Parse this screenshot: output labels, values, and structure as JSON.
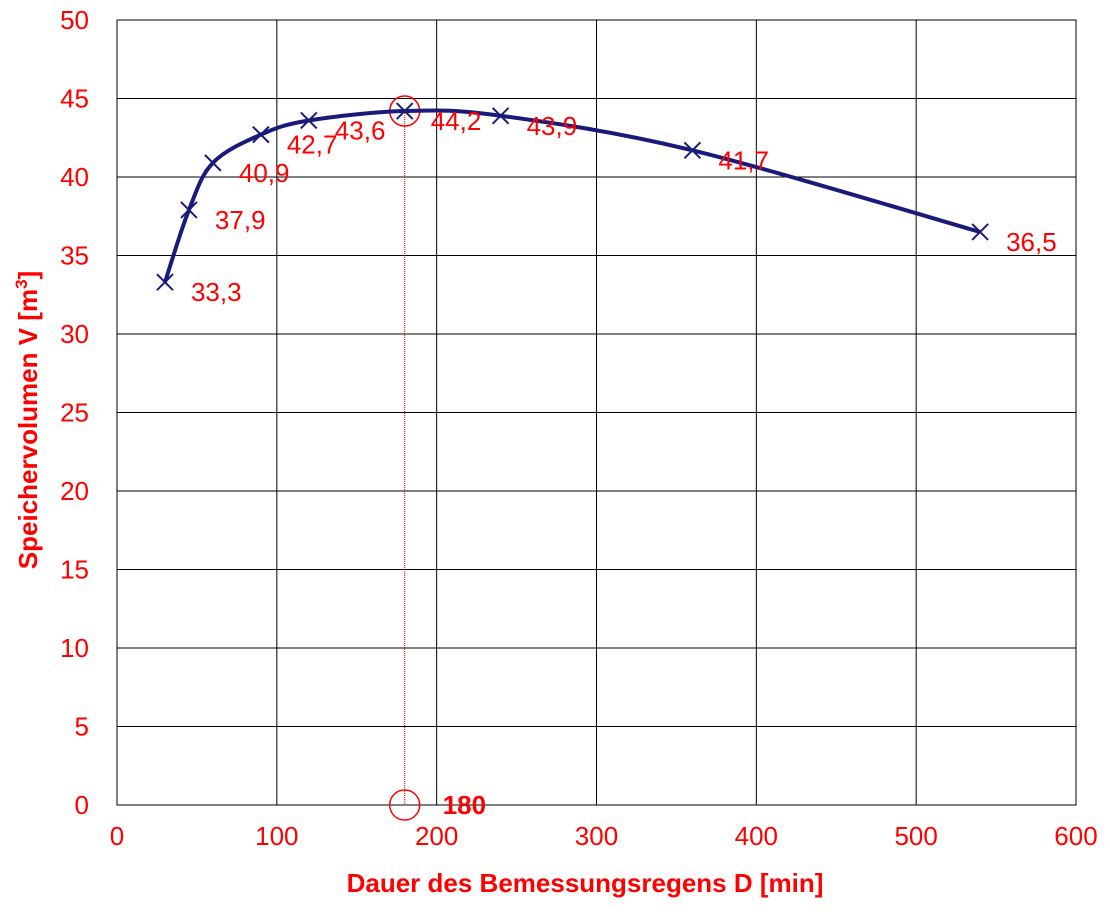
{
  "chart_data": {
    "type": "line",
    "x": [
      30,
      45,
      60,
      90,
      120,
      180,
      240,
      360,
      540
    ],
    "series": [
      {
        "values": [
          33.3,
          37.9,
          40.9,
          42.7,
          43.6,
          44.2,
          43.9,
          41.7,
          36.5
        ]
      }
    ],
    "data_labels": [
      "33,3",
      "37,9",
      "40,9",
      "42,7",
      "43,6",
      "44,2",
      "43,9",
      "41,7",
      "36,5"
    ],
    "xlabel": "Dauer des Bemessungsregens  D [min]",
    "ylabel_main": "Speichervolumen V [m",
    "ylabel_sup": "3",
    "ylabel_end": "]",
    "xlim": [
      0,
      600
    ],
    "ylim": [
      0,
      50
    ],
    "xticks": [
      0,
      100,
      200,
      300,
      400,
      500,
      600
    ],
    "yticks": [
      0,
      5,
      10,
      15,
      20,
      25,
      30,
      35,
      40,
      45,
      50
    ],
    "grid": true,
    "highlight": {
      "x": 180,
      "y": 44.2,
      "label": "180"
    },
    "colors": {
      "line": "#1a1a7a",
      "text": "#ff0000",
      "grid": "#000000"
    }
  }
}
